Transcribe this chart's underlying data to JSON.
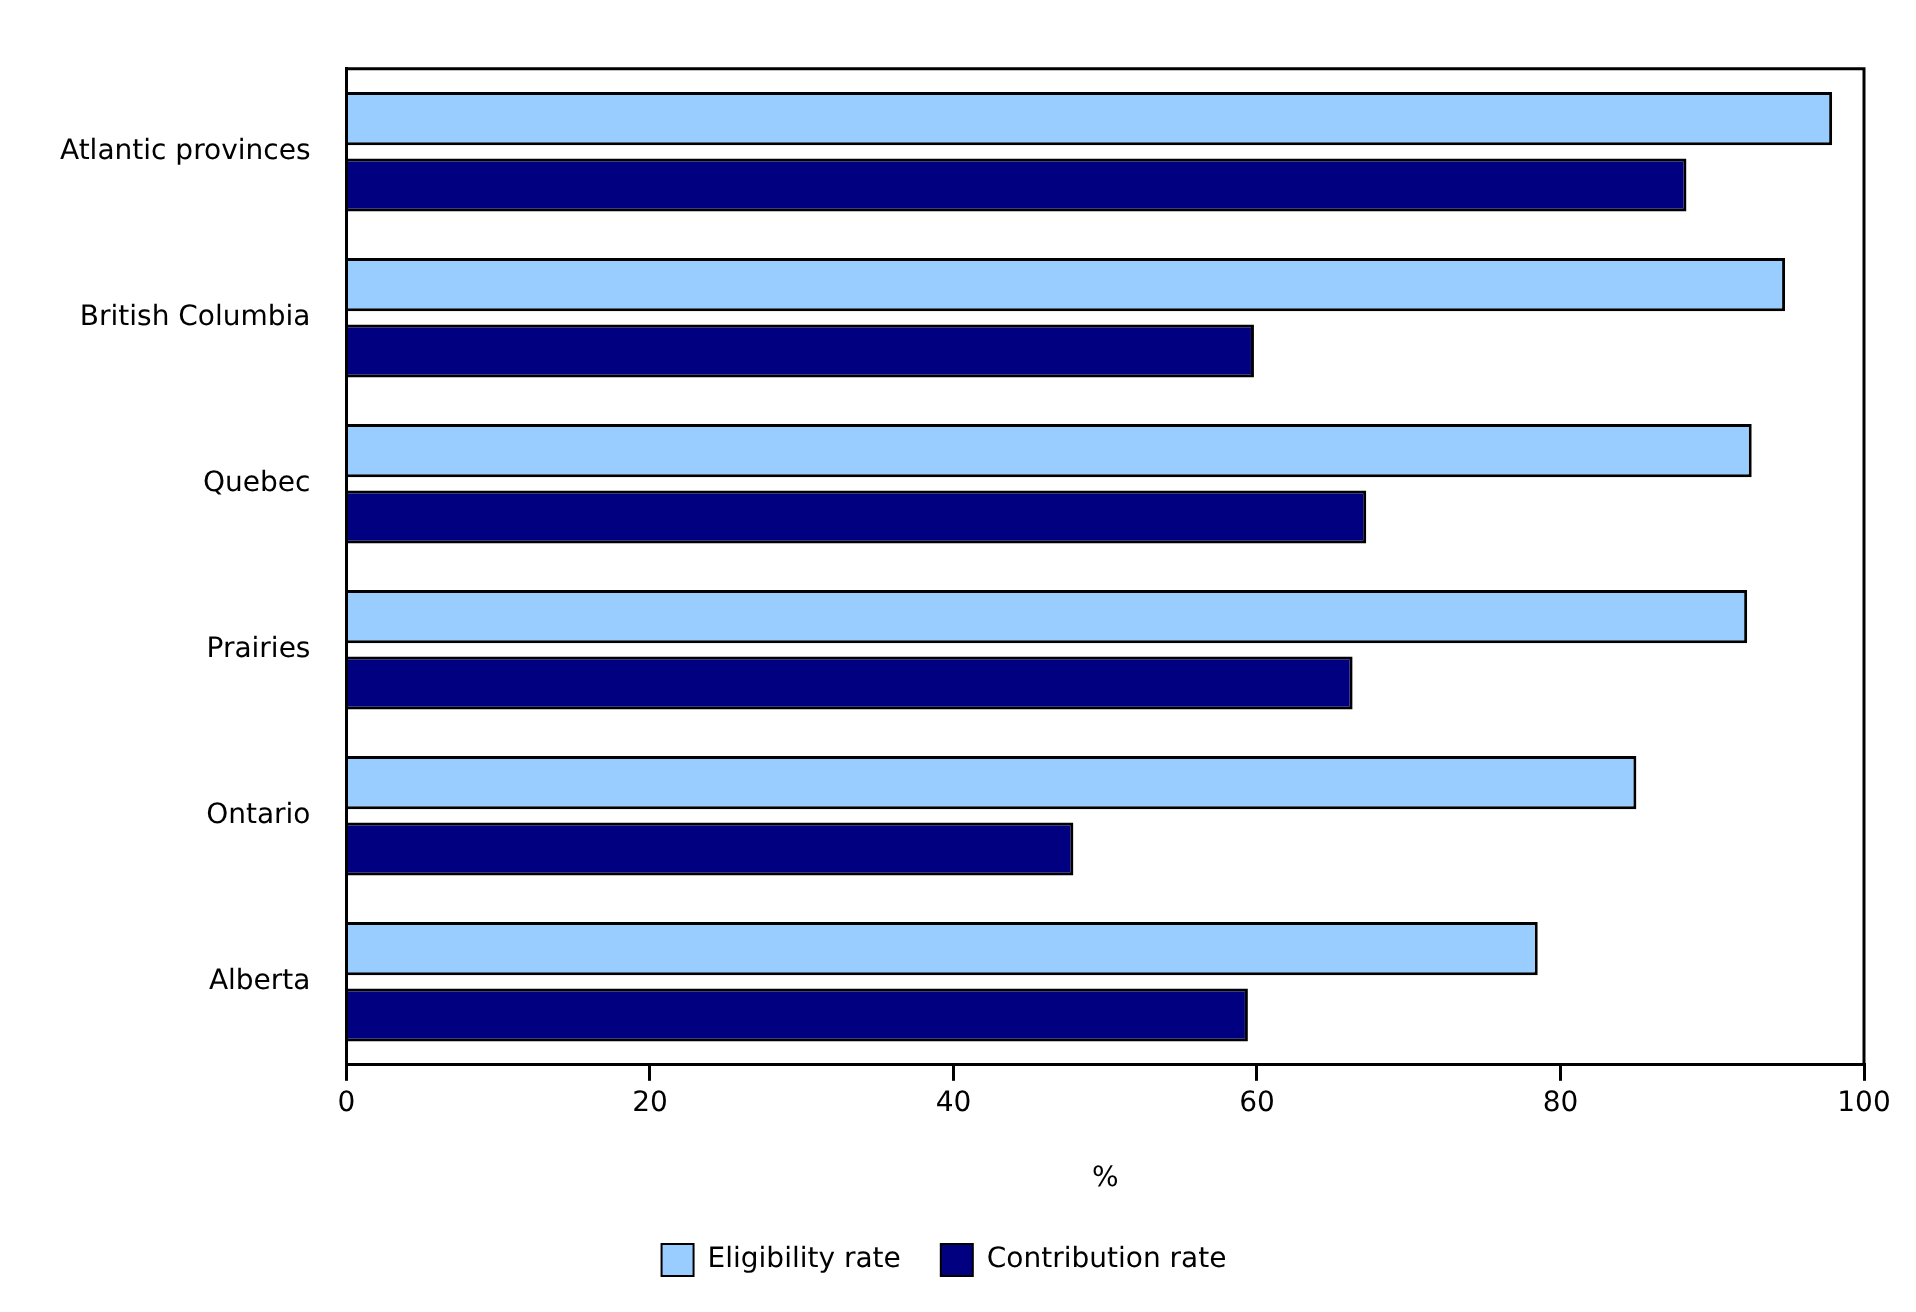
{
  "chart_data": {
    "type": "bar",
    "orientation": "horizontal",
    "xlabel": "%",
    "categories": [
      "Atlantic provinces",
      "British Columbia",
      "Quebec",
      "Prairies",
      "Ontario",
      "Alberta"
    ],
    "series": [
      {
        "name": "Eligibility rate",
        "color": "#99ccff",
        "values": [
          97.9,
          94.8,
          92.6,
          92.3,
          85.0,
          78.5
        ]
      },
      {
        "name": "Contribution rate",
        "color": "#000080",
        "values": [
          88.3,
          59.8,
          67.2,
          66.3,
          47.9,
          59.4
        ]
      }
    ],
    "xlim": [
      0,
      100
    ],
    "xticks": [
      0,
      20,
      40,
      60,
      80,
      100
    ],
    "grid": false,
    "legend": "bottom"
  }
}
